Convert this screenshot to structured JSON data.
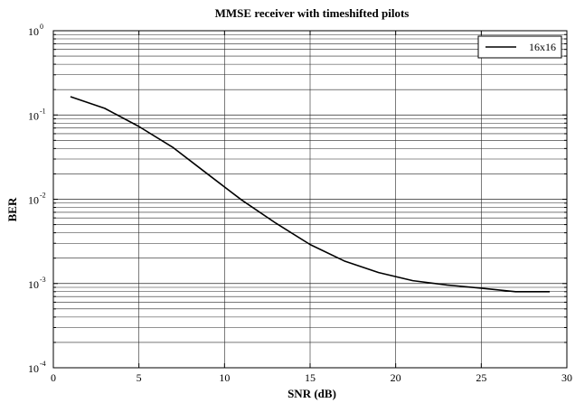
{
  "chart_data": {
    "type": "line",
    "title": "MMSE receiver with timeshifted pilots",
    "xlabel": "SNR (dB)",
    "ylabel": "BER",
    "xlim": [
      0,
      30
    ],
    "ylim": [
      0.0001,
      1
    ],
    "yscale": "log",
    "grid": true,
    "legend_position": "top-right",
    "x_ticks": [
      0,
      5,
      10,
      15,
      20,
      25,
      30
    ],
    "y_ticks": [
      {
        "base": "10",
        "exp": "0",
        "value": 1
      },
      {
        "base": "10",
        "exp": "-1",
        "value": 0.1
      },
      {
        "base": "10",
        "exp": "-2",
        "value": 0.01
      },
      {
        "base": "10",
        "exp": "-3",
        "value": 0.001
      },
      {
        "base": "10",
        "exp": "-4",
        "value": 0.0001
      }
    ],
    "series": [
      {
        "name": "16x16",
        "color": "#000000",
        "x": [
          1,
          3,
          5,
          7,
          9,
          11,
          13,
          15,
          17,
          19,
          21,
          23,
          25,
          27,
          29
        ],
        "y": [
          0.165,
          0.12,
          0.073,
          0.041,
          0.02,
          0.0098,
          0.0052,
          0.0029,
          0.00185,
          0.00135,
          0.00108,
          0.00096,
          0.00088,
          0.0008,
          0.0008
        ]
      }
    ]
  }
}
